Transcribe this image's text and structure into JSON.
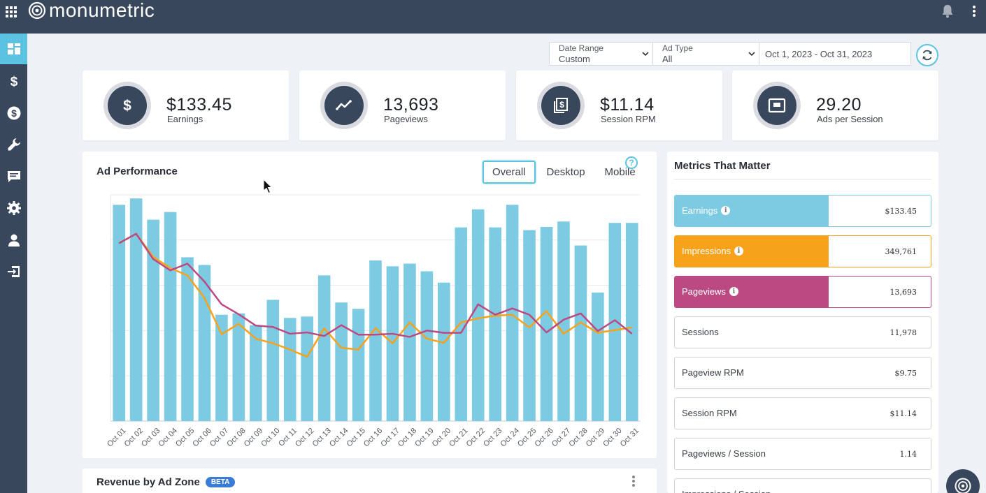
{
  "header": {
    "brand": "monumetric"
  },
  "sidebar": {
    "items": [
      {
        "icon": "dashboard-icon",
        "active": true
      },
      {
        "icon": "dollar-icon"
      },
      {
        "icon": "dollar-circle-icon"
      },
      {
        "icon": "wrench-icon"
      },
      {
        "icon": "chat-icon"
      },
      {
        "icon": "gear-icon"
      },
      {
        "icon": "user-icon"
      },
      {
        "icon": "logout-icon"
      }
    ]
  },
  "filters": {
    "date_range": {
      "label": "Date Range",
      "value": "Custom"
    },
    "ad_type": {
      "label": "Ad Type",
      "value": "All"
    },
    "dates": "Oct 1, 2023 - Oct 31, 2023"
  },
  "kpis": [
    {
      "value": "$133.45",
      "label": "Earnings",
      "icon": "dollar-icon"
    },
    {
      "value": "13,693",
      "label": "Pageviews",
      "icon": "trend-icon"
    },
    {
      "value": "$11.14",
      "label": "Session RPM",
      "icon": "rpm-icon"
    },
    {
      "value": "29.20",
      "label": "Ads per Session",
      "icon": "ad-window-icon"
    }
  ],
  "ad_performance": {
    "title": "Ad Performance",
    "tabs": [
      "Overall",
      "Desktop",
      "Mobile"
    ],
    "active_tab": "Overall",
    "help": "?"
  },
  "metrics": {
    "title": "Metrics That Matter",
    "items": [
      {
        "label": "Earnings",
        "value": "$133.45",
        "color": "#7ccbe3",
        "info": "i"
      },
      {
        "label": "Impressions",
        "value": "349,761",
        "color": "#f7a21b",
        "info": "i"
      },
      {
        "label": "Pageviews",
        "value": "13,693",
        "color": "#bc4a82",
        "info": "i"
      },
      {
        "label": "Sessions",
        "value": "11,978"
      },
      {
        "label": "Pageview RPM",
        "value": "$9.75"
      },
      {
        "label": "Session RPM",
        "value": "$11.14"
      },
      {
        "label": "Pageviews / Session",
        "value": "1.14"
      },
      {
        "label": "Impressions / Session",
        "value": ""
      }
    ]
  },
  "revenue_zone": {
    "title": "Revenue by Ad Zone",
    "badge": "BETA"
  },
  "chart_data": {
    "type": "bar",
    "categories": [
      "Oct 01",
      "Oct 02",
      "Oct 03",
      "Oct 04",
      "Oct 05",
      "Oct 06",
      "Oct 07",
      "Oct 08",
      "Oct 09",
      "Oct 10",
      "Oct 11",
      "Oct 12",
      "Oct 13",
      "Oct 14",
      "Oct 15",
      "Oct 16",
      "Oct 17",
      "Oct 18",
      "Oct 19",
      "Oct 20",
      "Oct 21",
      "Oct 22",
      "Oct 23",
      "Oct 24",
      "Oct 25",
      "Oct 26",
      "Oct 27",
      "Oct 28",
      "Oct 29",
      "Oct 30",
      "Oct 31"
    ],
    "ylim": [
      0,
      5
    ],
    "grid": true,
    "series": [
      {
        "kind": "bar",
        "color": "#7ccbe3",
        "values": [
          4.78,
          4.92,
          4.45,
          4.62,
          3.62,
          3.45,
          2.35,
          2.38,
          2.12,
          2.68,
          2.28,
          2.31,
          3.22,
          2.62,
          2.48,
          3.55,
          3.42,
          3.48,
          3.31,
          3.06,
          4.28,
          4.68,
          4.28,
          4.78,
          4.22,
          4.29,
          4.41,
          3.88,
          2.84,
          4.38,
          4.38
        ]
      },
      {
        "kind": "line",
        "color": "#f7a21b",
        "values": [
          3.93,
          4.14,
          3.63,
          3.38,
          3.22,
          2.72,
          1.92,
          2.15,
          1.82,
          1.72,
          1.58,
          1.42,
          2.05,
          1.62,
          1.58,
          2.05,
          1.72,
          2.18,
          1.82,
          1.73,
          2.18,
          2.27,
          2.33,
          2.35,
          2.07,
          2.43,
          1.93,
          2.18,
          1.95,
          2.01,
          2.07
        ]
      },
      {
        "kind": "line",
        "color": "#bc4a82",
        "values": [
          3.93,
          4.14,
          3.58,
          3.33,
          3.48,
          3.08,
          2.58,
          2.36,
          2.11,
          2.08,
          1.93,
          1.96,
          1.88,
          2.12,
          1.91,
          1.91,
          1.93,
          1.86,
          2.0,
          1.95,
          1.95,
          2.58,
          2.35,
          2.49,
          2.35,
          1.96,
          2.24,
          2.38,
          1.99,
          2.23,
          1.93
        ]
      }
    ]
  }
}
